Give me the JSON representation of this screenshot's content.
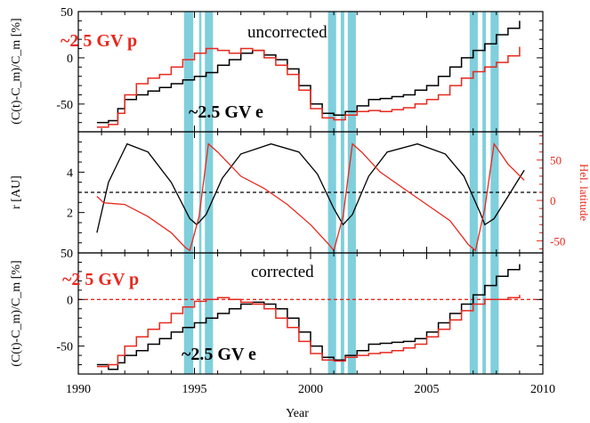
{
  "chart_data": [
    {
      "type": "line",
      "panel": "top",
      "ylabel": "(C(t)-C_m)/C_m [%]",
      "xlim": [
        1990,
        2010
      ],
      "ylim": [
        -80,
        50
      ],
      "yticks": [
        -50,
        0,
        50
      ],
      "annotations": {
        "title": "uncorrected",
        "proton": "~2 5 GV p",
        "electron": "~2.5 GV e"
      },
      "series": [
        {
          "name": "~2.5 GV e",
          "color": "#000000",
          "x": [
            1990.8,
            1991.3,
            1991.7,
            1992.0,
            1992.5,
            1993.0,
            1993.5,
            1994.0,
            1994.5,
            1995.0,
            1995.5,
            1996.0,
            1996.5,
            1997.0,
            1997.5,
            1998.0,
            1998.5,
            1999.0,
            1999.5,
            2000.0,
            2000.5,
            2001.0,
            2001.5,
            2002.0,
            2002.5,
            2003.0,
            2003.5,
            2004.0,
            2004.5,
            2005.0,
            2005.5,
            2006.0,
            2006.5,
            2007.0,
            2007.5,
            2008.0,
            2008.5,
            2009.0
          ],
          "y": [
            -70,
            -68,
            -55,
            -45,
            -40,
            -36,
            -32,
            -28,
            -24,
            -20,
            -16,
            -8,
            -2,
            5,
            8,
            3,
            -2,
            -12,
            -30,
            -50,
            -60,
            -62,
            -58,
            -52,
            -45,
            -44,
            -42,
            -40,
            -35,
            -30,
            -20,
            -10,
            0,
            8,
            15,
            25,
            32,
            40
          ]
        },
        {
          "name": "~2 5 GV p",
          "color": "#e8281e",
          "x": [
            1990.8,
            1991.3,
            1991.7,
            1992.0,
            1992.5,
            1993.0,
            1993.5,
            1994.0,
            1994.5,
            1995.0,
            1995.5,
            1996.0,
            1996.5,
            1997.0,
            1997.5,
            1998.0,
            1998.5,
            1999.0,
            1999.5,
            2000.0,
            2000.5,
            2001.0,
            2001.5,
            2002.0,
            2002.5,
            2003.0,
            2003.5,
            2004.0,
            2004.5,
            2005.0,
            2005.5,
            2006.0,
            2006.5,
            2007.0,
            2007.5,
            2008.0,
            2008.5,
            2009.0
          ],
          "y": [
            -75,
            -72,
            -60,
            -40,
            -28,
            -22,
            -18,
            -10,
            -2,
            5,
            10,
            8,
            5,
            10,
            8,
            0,
            -8,
            -18,
            -35,
            -55,
            -65,
            -67,
            -62,
            -58,
            -57,
            -58,
            -56,
            -54,
            -50,
            -45,
            -40,
            -30,
            -22,
            -15,
            -10,
            -5,
            2,
            12
          ]
        }
      ]
    },
    {
      "type": "line",
      "panel": "middle",
      "ylabel": "r [AU]",
      "y2label": "Hel. latitude",
      "xlim": [
        1990,
        2010
      ],
      "ylim": [
        0,
        6
      ],
      "yticks": [
        2,
        4
      ],
      "y2lim": [
        -65,
        85
      ],
      "y2ticks": [
        -50,
        0,
        50
      ],
      "reference_line": 3,
      "series": [
        {
          "name": "r",
          "color": "#000000",
          "x": [
            1990.8,
            1991.3,
            1992.1,
            1993.0,
            1994.0,
            1994.8,
            1995.1,
            1995.5,
            1996.2,
            1997.0,
            1998.3,
            1999.5,
            2000.3,
            2001.0,
            2001.4,
            2001.8,
            2002.5,
            2003.3,
            2004.6,
            2005.8,
            2006.6,
            2007.3,
            2007.5,
            2007.9,
            2008.5,
            2009.2
          ],
          "y": [
            1.0,
            3.5,
            5.4,
            5.0,
            3.5,
            1.7,
            1.4,
            1.9,
            3.7,
            4.9,
            5.4,
            5.0,
            3.9,
            2.2,
            1.4,
            1.9,
            3.8,
            5.0,
            5.4,
            4.9,
            3.8,
            2.0,
            1.4,
            1.7,
            2.8,
            4.1
          ]
        },
        {
          "name": "Hel. latitude",
          "color": "#e8281e",
          "x": [
            1990.8,
            1991.1,
            1992.0,
            1993.0,
            1994.0,
            1994.6,
            1994.8,
            1995.2,
            1995.6,
            1996.0,
            1997.0,
            1998.0,
            1999.0,
            2000.0,
            2000.8,
            2001.0,
            2001.4,
            2001.8,
            2002.2,
            2003.0,
            2004.0,
            2005.0,
            2006.0,
            2006.8,
            2007.1,
            2007.5,
            2007.9,
            2008.5,
            2009.2
          ],
          "y": [
            5,
            -3,
            -5,
            -20,
            -40,
            -58,
            -62,
            -20,
            70,
            60,
            30,
            15,
            -5,
            -30,
            -55,
            -62,
            -20,
            70,
            60,
            35,
            15,
            -5,
            -25,
            -55,
            -62,
            -10,
            70,
            45,
            25
          ]
        }
      ]
    },
    {
      "type": "line",
      "panel": "bottom",
      "ylabel": "(C(t)-C_m)/C_m [%]",
      "xlabel": "Year",
      "xlim": [
        1990,
        2010
      ],
      "xticks": [
        1990,
        1995,
        2000,
        2005,
        2010
      ],
      "ylim": [
        -80,
        50
      ],
      "yticks": [
        -50,
        0,
        50
      ],
      "reference_line": 0,
      "annotations": {
        "title": "corrected",
        "proton": "~2 5 GV p",
        "electron": "~2.5 GV e"
      },
      "series": [
        {
          "name": "~2.5 GV e",
          "color": "#000000",
          "x": [
            1990.8,
            1991.3,
            1991.7,
            1992.0,
            1992.5,
            1993.0,
            1993.5,
            1994.0,
            1994.5,
            1995.0,
            1995.5,
            1996.0,
            1996.5,
            1997.0,
            1997.5,
            1998.0,
            1998.5,
            1999.0,
            1999.5,
            2000.0,
            2000.5,
            2001.0,
            2001.5,
            2002.0,
            2002.5,
            2003.0,
            2003.5,
            2004.0,
            2004.5,
            2005.0,
            2005.5,
            2006.0,
            2006.5,
            2007.0,
            2007.5,
            2008.0,
            2008.5,
            2009.0
          ],
          "y": [
            -70,
            -75,
            -68,
            -60,
            -55,
            -48,
            -42,
            -35,
            -30,
            -25,
            -20,
            -15,
            -10,
            -5,
            -3,
            -5,
            -10,
            -20,
            -35,
            -50,
            -62,
            -65,
            -60,
            -55,
            -48,
            -47,
            -46,
            -45,
            -42,
            -35,
            -25,
            -15,
            -5,
            5,
            15,
            25,
            32,
            38
          ]
        },
        {
          "name": "~2 5 GV p",
          "color": "#e8281e",
          "x": [
            1990.8,
            1991.3,
            1991.7,
            1992.0,
            1992.5,
            1993.0,
            1993.5,
            1994.0,
            1994.5,
            1995.0,
            1995.5,
            1996.0,
            1996.5,
            1997.0,
            1997.5,
            1998.0,
            1998.5,
            1999.0,
            1999.5,
            2000.0,
            2000.5,
            2001.0,
            2001.5,
            2002.0,
            2002.5,
            2003.0,
            2003.5,
            2004.0,
            2004.5,
            2005.0,
            2005.5,
            2006.0,
            2006.5,
            2007.0,
            2007.5,
            2008.0,
            2008.5,
            2009.0
          ],
          "y": [
            -72,
            -70,
            -60,
            -50,
            -40,
            -32,
            -25,
            -15,
            -8,
            -2,
            0,
            2,
            0,
            -3,
            -5,
            -10,
            -20,
            -30,
            -45,
            -58,
            -65,
            -66,
            -62,
            -60,
            -58,
            -57,
            -55,
            -52,
            -48,
            -40,
            -32,
            -22,
            -12,
            -5,
            0,
            0,
            2,
            5
          ]
        }
      ]
    }
  ],
  "shaded_intervals": [
    [
      1994.55,
      1994.95
    ],
    [
      1995.2,
      1995.3
    ],
    [
      1995.45,
      1995.8
    ],
    [
      2000.75,
      2001.1
    ],
    [
      2001.3,
      2001.45
    ],
    [
      2001.6,
      2001.95
    ],
    [
      2006.85,
      2007.2
    ],
    [
      2007.4,
      2007.55
    ],
    [
      2007.75,
      2008.1
    ]
  ],
  "shade_color": "#7fcfdc",
  "colors": {
    "electron": "#000000",
    "proton": "#e8281e",
    "reference": "#000000"
  }
}
